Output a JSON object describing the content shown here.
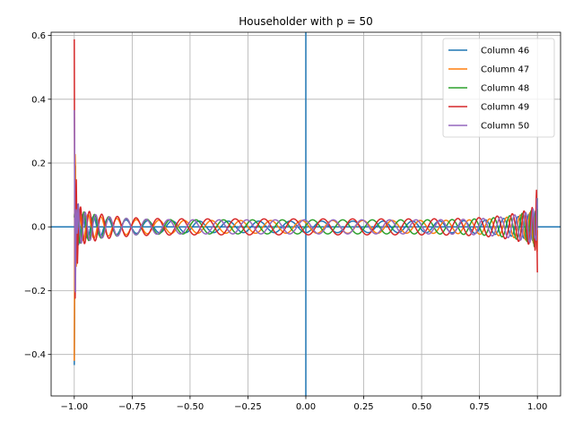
{
  "chart_data": {
    "type": "line",
    "title": "Householder with p = 50",
    "xlabel": "",
    "ylabel": "",
    "xlim": [
      -1.1,
      1.1
    ],
    "ylim": [
      -0.53,
      0.61
    ],
    "grid": true,
    "legend_position": "top-right",
    "x_ticks": [
      -1.0,
      -0.75,
      -0.5,
      -0.25,
      0.0,
      0.25,
      0.5,
      0.75,
      1.0
    ],
    "x_tick_labels": [
      "−1.00",
      "−0.75",
      "−0.50",
      "−0.25",
      "0.00",
      "0.25",
      "0.50",
      "0.75",
      "1.00"
    ],
    "y_ticks": [
      -0.4,
      -0.2,
      0.0,
      0.2,
      0.4,
      0.6
    ],
    "y_tick_labels": [
      "−0.4",
      "−0.2",
      "0.0",
      "0.2",
      "0.4",
      "0.6"
    ],
    "axis_lines": {
      "x": 0,
      "y": 0,
      "color": "#1f77b4"
    },
    "series": [
      {
        "name": "Column 46",
        "color": "#1f77b4",
        "col": 46,
        "amp": 0.018,
        "left_end": -0.48,
        "right_end": 0.02
      },
      {
        "name": "Column 47",
        "color": "#ff7f0e",
        "col": 47,
        "amp": 0.02,
        "left_end": -0.38,
        "right_end": -0.05
      },
      {
        "name": "Column 48",
        "color": "#2ca02c",
        "col": 48,
        "amp": 0.022,
        "left_end": 0.02,
        "right_end": 0.08
      },
      {
        "name": "Column 49",
        "color": "#d62728",
        "col": 49,
        "amp": 0.025,
        "left_end": 0.555,
        "right_end": -0.11
      },
      {
        "name": "Column 50",
        "color": "#9467bd",
        "col": 50,
        "amp": 0.022,
        "left_end": 0.42,
        "right_end": 0.11
      }
    ]
  }
}
